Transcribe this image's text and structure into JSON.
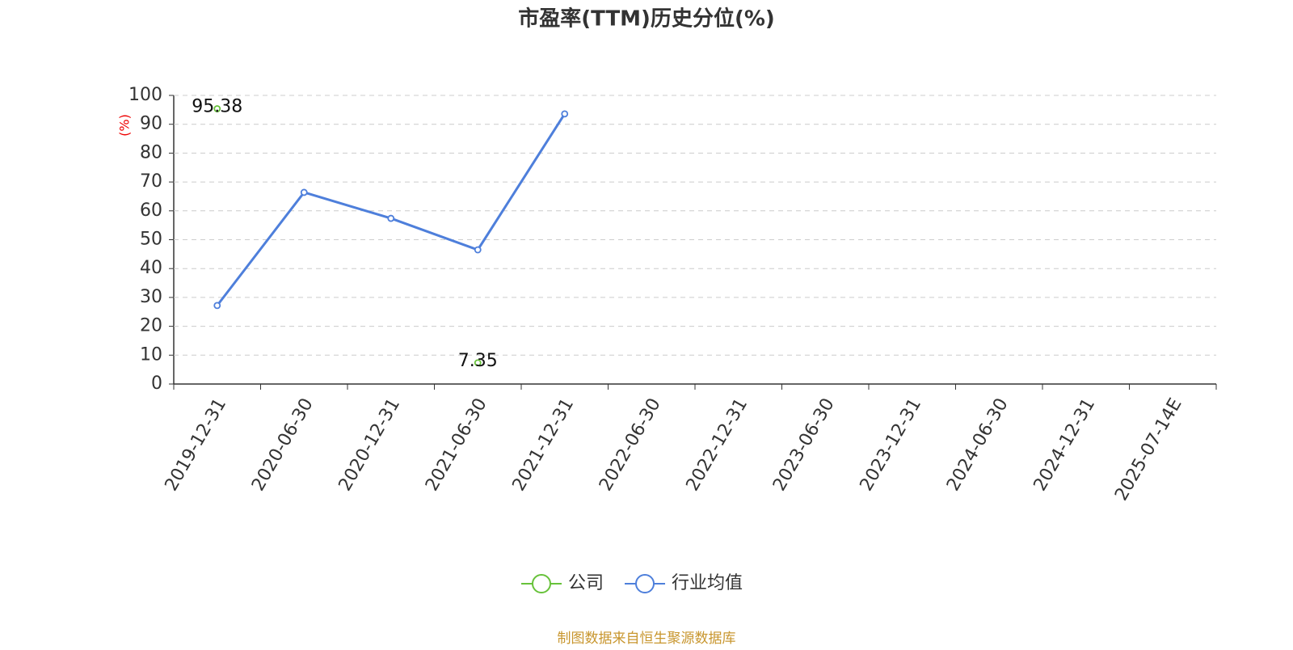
{
  "chart_data": {
    "type": "line",
    "title": "市盈率(TTM)历史分位(%)",
    "y_label": "(%)",
    "categories": [
      "2019-12-31",
      "2020-06-30",
      "2020-12-31",
      "2021-06-30",
      "2021-12-31",
      "2022-06-30",
      "2022-12-31",
      "2023-06-30",
      "2023-12-31",
      "2024-06-30",
      "2024-12-31",
      "2025-07-14E"
    ],
    "series": [
      {
        "name": "公司",
        "color": "#67c23a",
        "show_labels": true,
        "values": [
          95.38,
          null,
          null,
          7.35,
          null,
          null,
          null,
          null,
          null,
          null,
          null,
          null
        ]
      },
      {
        "name": "行业均值",
        "color": "#4e7fdb",
        "show_labels": false,
        "values": [
          27.2,
          66.4,
          57.4,
          46.5,
          93.6,
          null,
          null,
          null,
          null,
          null,
          null,
          null
        ]
      }
    ],
    "ylim": [
      0,
      100
    ],
    "yticks": [
      0,
      10,
      20,
      30,
      40,
      50,
      60,
      70,
      80,
      90,
      100
    ],
    "grid": true,
    "legend": "bottom",
    "source": "制图数据来自恒生聚源数据库"
  }
}
